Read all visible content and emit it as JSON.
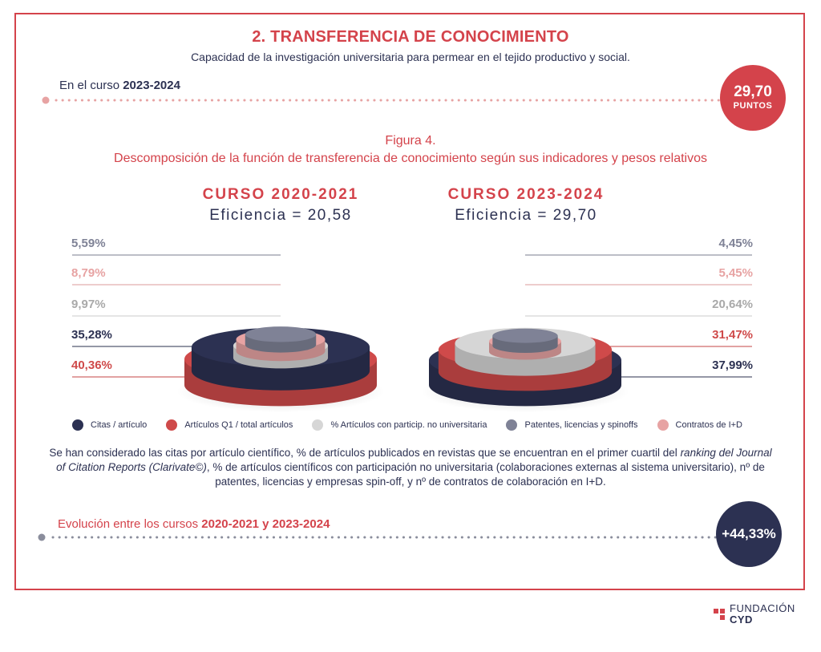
{
  "header": {
    "title": "2. TRANSFERENCIA DE CONOCIMIENTO",
    "subtitle": "Capacidad de la investigación universitaria para permear en el tejido productivo y social."
  },
  "current": {
    "label_prefix": "En el curso",
    "label_year": "2023-2024",
    "score": "29,70",
    "score_unit": "PUNTOS"
  },
  "figure": {
    "number": "Figura 4.",
    "caption": "Descomposición de la función de transferencia de conocimiento según sus indicadores y pesos relativos"
  },
  "chart_data": {
    "type": "stacked-cylinder",
    "title": "Descomposición de la función de transferencia de conocimiento según sus indicadores y pesos relativos",
    "unit": "%",
    "categories": [
      "Citas / artículo",
      "Artículos Q1 / total artículos",
      "% Artículos con particip. no universitaria",
      "Patentes, licencias y spinoffs",
      "Contratos de I+D"
    ],
    "colors": [
      "#2c3152",
      "#cf4a4a",
      "#d6d6d6",
      "#7f8296",
      "#e7a3a3"
    ],
    "series": [
      {
        "name": "CURSO 2020-2021",
        "efficiency_label": "Eficiencia = 20,58",
        "layers": [
          {
            "indicator": "Patentes, licencias y spinoffs",
            "value": 5.59,
            "label": "5,59%"
          },
          {
            "indicator": "Contratos de I+D",
            "value": 8.79,
            "label": "8,79%"
          },
          {
            "indicator": "% Artículos con particip. no universitaria",
            "value": 9.97,
            "label": "9,97%"
          },
          {
            "indicator": "Citas / artículo",
            "value": 35.28,
            "label": "35,28%"
          },
          {
            "indicator": "Artículos Q1 / total artículos",
            "value": 40.36,
            "label": "40,36%"
          }
        ]
      },
      {
        "name": "CURSO 2023-2024",
        "efficiency_label": "Eficiencia = 29,70",
        "layers": [
          {
            "indicator": "Patentes, licencias y spinoffs",
            "value": 4.45,
            "label": "4,45%"
          },
          {
            "indicator": "Contratos de I+D",
            "value": 5.45,
            "label": "5,45%"
          },
          {
            "indicator": "% Artículos con particip. no universitaria",
            "value": 20.64,
            "label": "20,64%"
          },
          {
            "indicator": "Artículos Q1 / total artículos",
            "value": 31.47,
            "label": "31,47%"
          },
          {
            "indicator": "Citas / artículo",
            "value": 37.99,
            "label": "37,99%"
          }
        ]
      }
    ]
  },
  "note": {
    "part1": "Se han considerado las citas por artículo científico, % de artículos publicados en revistas que se encuentran en el primer cuartil del",
    "italic": "ranking del Journal of Citation Reports (Clarivate©)",
    "part2": ", % de artículos científicos con participación no universitaria (colaboraciones externas al sistema universitario), nº de patentes, licencias y empresas spin-off, y nº de contratos de colaboración en I+D."
  },
  "evolution": {
    "label_prefix": "Evolución entre los cursos",
    "label_years": "2020-2021 y 2023-2024",
    "value": "+44,33%"
  },
  "logo": {
    "line1": "FUNDACIÓN",
    "line2": "CYD"
  }
}
